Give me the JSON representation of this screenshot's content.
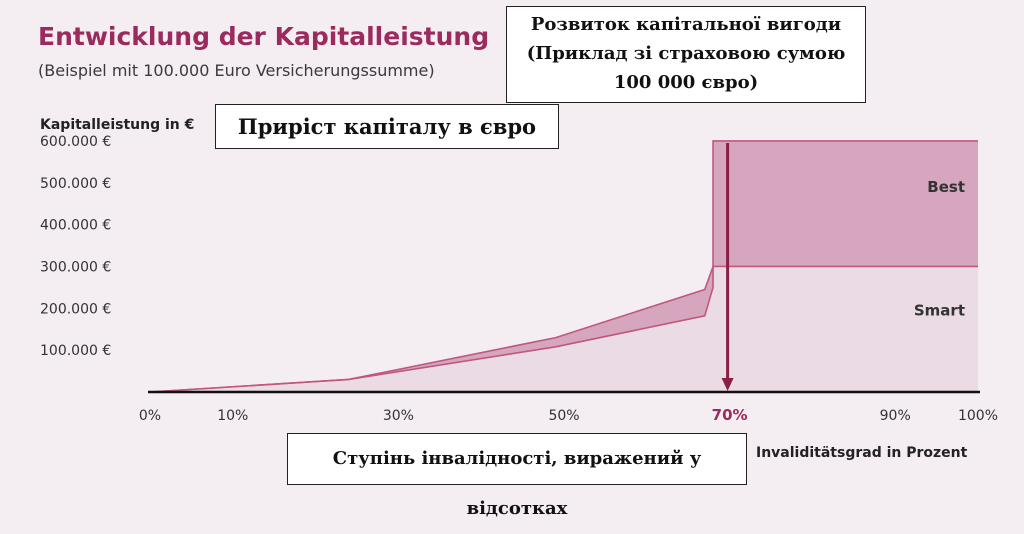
{
  "header": {
    "title": "Entwicklung der Kapitalleistung",
    "subtitle": "(Beispiel mit 100.000 Euro Versicherungssumme)"
  },
  "overlays": {
    "box1_lines": [
      "Розвиток капітальної вигоди",
      "(Приклад зі страховою сумою",
      "100 000 євро)"
    ],
    "box2": "Приріст капіталу в євро",
    "box3": "Ступінь інвалідності, виражений у відсотках"
  },
  "colors": {
    "background": "#f4edf1",
    "accent": "#9b2a5f",
    "best_fill": "#d6a6be",
    "smart_fill": "#eadbe5",
    "line": "#c0577f",
    "marker": "#8a1f45"
  },
  "chart_data": {
    "type": "area",
    "ylabel": "Kapitalleistung in €",
    "xlabel": "Invaliditätsgrad in Prozent",
    "xlim": [
      0,
      100
    ],
    "ylim": [
      0,
      650000
    ],
    "y_ticks": [
      "100.000 €",
      "200.000 €",
      "300.000 €",
      "400.000 €",
      "500.000 €",
      "600.000 €"
    ],
    "y_tick_values": [
      100000,
      200000,
      300000,
      400000,
      500000,
      600000
    ],
    "x_ticks": [
      "0%",
      "10%",
      "30%",
      "50%",
      "70%",
      "90%",
      "100%"
    ],
    "x_tick_values": [
      0,
      10,
      30,
      50,
      70,
      90,
      100
    ],
    "highlight_x": 70,
    "series": [
      {
        "name": "Best",
        "x": [
          0,
          24,
          49,
          67,
          68,
          68,
          100
        ],
        "y": [
          0,
          30000,
          130000,
          245000,
          300000,
          600000,
          600000
        ]
      },
      {
        "name": "Smart",
        "x": [
          0,
          24,
          49,
          67,
          68,
          68,
          100
        ],
        "y": [
          0,
          30000,
          108000,
          182000,
          250000,
          300000,
          300000
        ]
      }
    ]
  }
}
